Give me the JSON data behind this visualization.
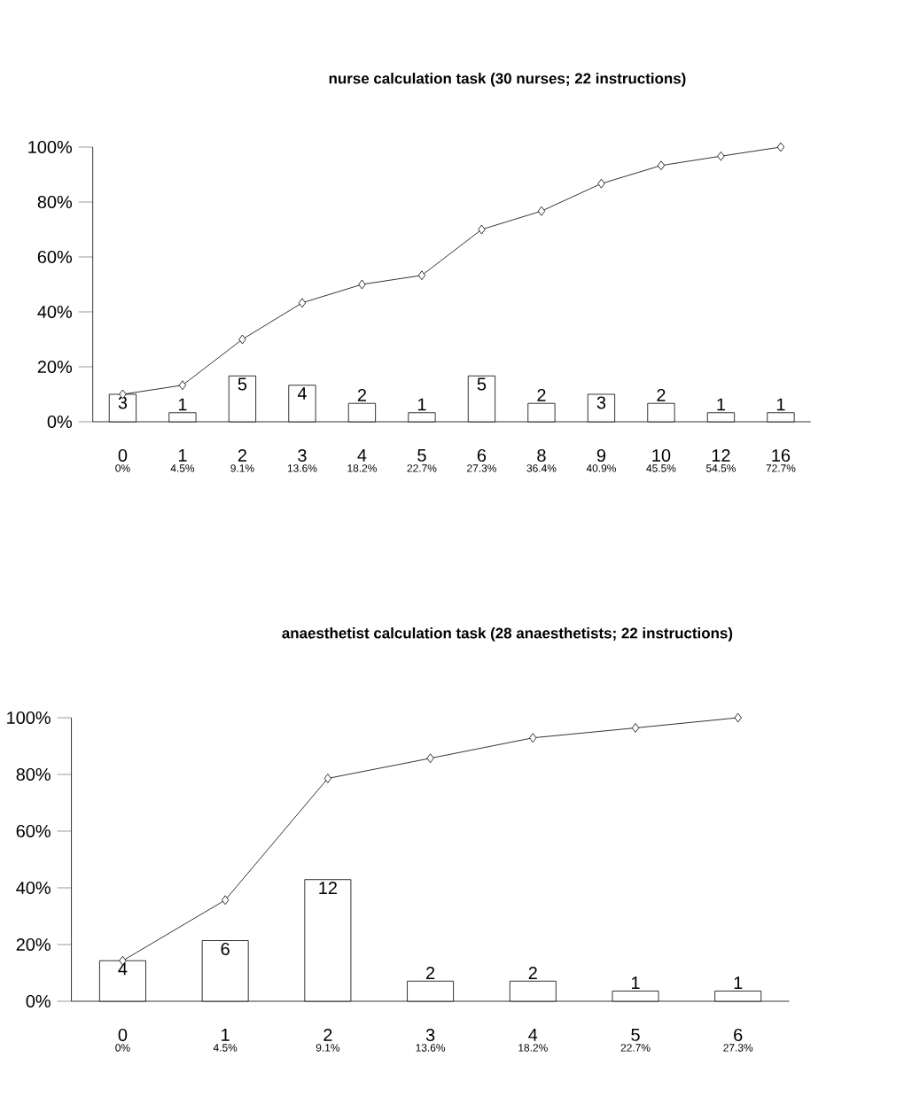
{
  "chart_data": [
    {
      "type": "bar",
      "title": "nurse calculation task (30 nurses; 22 instructions)",
      "categories": [
        "0",
        "1",
        "2",
        "3",
        "4",
        "5",
        "6",
        "8",
        "9",
        "10",
        "12",
        "16"
      ],
      "annotations": [
        "0%",
        "4.5%",
        "9.1%",
        "13.6%",
        "18.2%",
        "22.7%",
        "27.3%",
        "36.4%",
        "40.9%",
        "45.5%",
        "54.5%",
        "72.7%",
        {
          "text": "3",
          "x": "0",
          "y": 10
        },
        {
          "text": "1",
          "x": "1",
          "y": 3.3
        },
        {
          "text": "5",
          "x": "2",
          "y": 16.7
        },
        {
          "text": "4",
          "x": "3",
          "y": 13.3
        },
        {
          "text": "2",
          "x": "4",
          "y": 6.7
        },
        {
          "text": "1",
          "x": "5",
          "y": 3.3
        },
        {
          "text": "5",
          "x": "6",
          "y": 16.7
        },
        {
          "text": "2",
          "x": "8",
          "y": 6.7
        },
        {
          "text": "3",
          "x": "9",
          "y": 10
        },
        {
          "text": "2",
          "x": "10",
          "y": 6.7
        },
        {
          "text": "1",
          "x": "12",
          "y": 3.3
        },
        {
          "text": "1",
          "x": "16",
          "y": 3.3
        }
      ],
      "ylim": [
        0,
        100
      ],
      "yticks": [
        {
          "value": 0,
          "label": "0%"
        },
        {
          "value": 20,
          "label": "20%"
        },
        {
          "value": 40,
          "label": "40%"
        },
        {
          "value": 60,
          "label": "60%"
        },
        {
          "value": 80,
          "label": "80%"
        },
        {
          "value": 100,
          "label": "100%"
        }
      ],
      "series": [
        {
          "color": "#ffffff",
          "values": [
            10,
            3.3,
            16.7,
            13.3,
            6.7,
            3.3,
            16.7,
            6.7,
            10,
            6.7,
            3.3,
            3.3
          ]
        },
        {
          "type": "line",
          "color": "#000000",
          "marker": "diamond",
          "values": [
            10,
            13.3,
            30,
            43.3,
            50,
            53.3,
            70,
            76.7,
            86.7,
            93.3,
            96.7,
            100
          ]
        }
      ]
    },
    {
      "type": "bar",
      "title": "anaesthetist calculation task (28 anaesthetists; 22 instructions)",
      "categories": [
        "0",
        "1",
        "2",
        "3",
        "4",
        "5",
        "6"
      ],
      "annotations": [
        "0%",
        "4.5%",
        "9.1%",
        "13.6%",
        "18.2%",
        "22.7%",
        "27.3%",
        {
          "text": "4",
          "x": "0",
          "y": 14.3
        },
        {
          "text": "6",
          "x": "1",
          "y": 21.4
        },
        {
          "text": "12",
          "x": "2",
          "y": 42.9
        },
        {
          "text": "2",
          "x": "3",
          "y": 7.1
        },
        {
          "text": "2",
          "x": "4",
          "y": 7.1
        },
        {
          "text": "1",
          "x": "5",
          "y": 3.6
        },
        {
          "text": "1",
          "x": "6",
          "y": 3.6
        }
      ],
      "ylim": [
        0,
        100
      ],
      "yticks": [
        {
          "value": 0,
          "label": "0%"
        },
        {
          "value": 20,
          "label": "20%"
        },
        {
          "value": 40,
          "label": "40%"
        },
        {
          "value": 60,
          "label": "60%"
        },
        {
          "value": 80,
          "label": "80%"
        },
        {
          "value": 100,
          "label": "100%"
        }
      ],
      "series": [
        {
          "color": "#ffffff",
          "values": [
            14.3,
            21.4,
            42.9,
            7.1,
            7.1,
            3.6,
            3.6
          ]
        },
        {
          "type": "line",
          "color": "#000000",
          "marker": "diamond",
          "values": [
            14.3,
            35.7,
            78.6,
            85.7,
            92.9,
            96.4,
            100
          ]
        }
      ]
    }
  ]
}
